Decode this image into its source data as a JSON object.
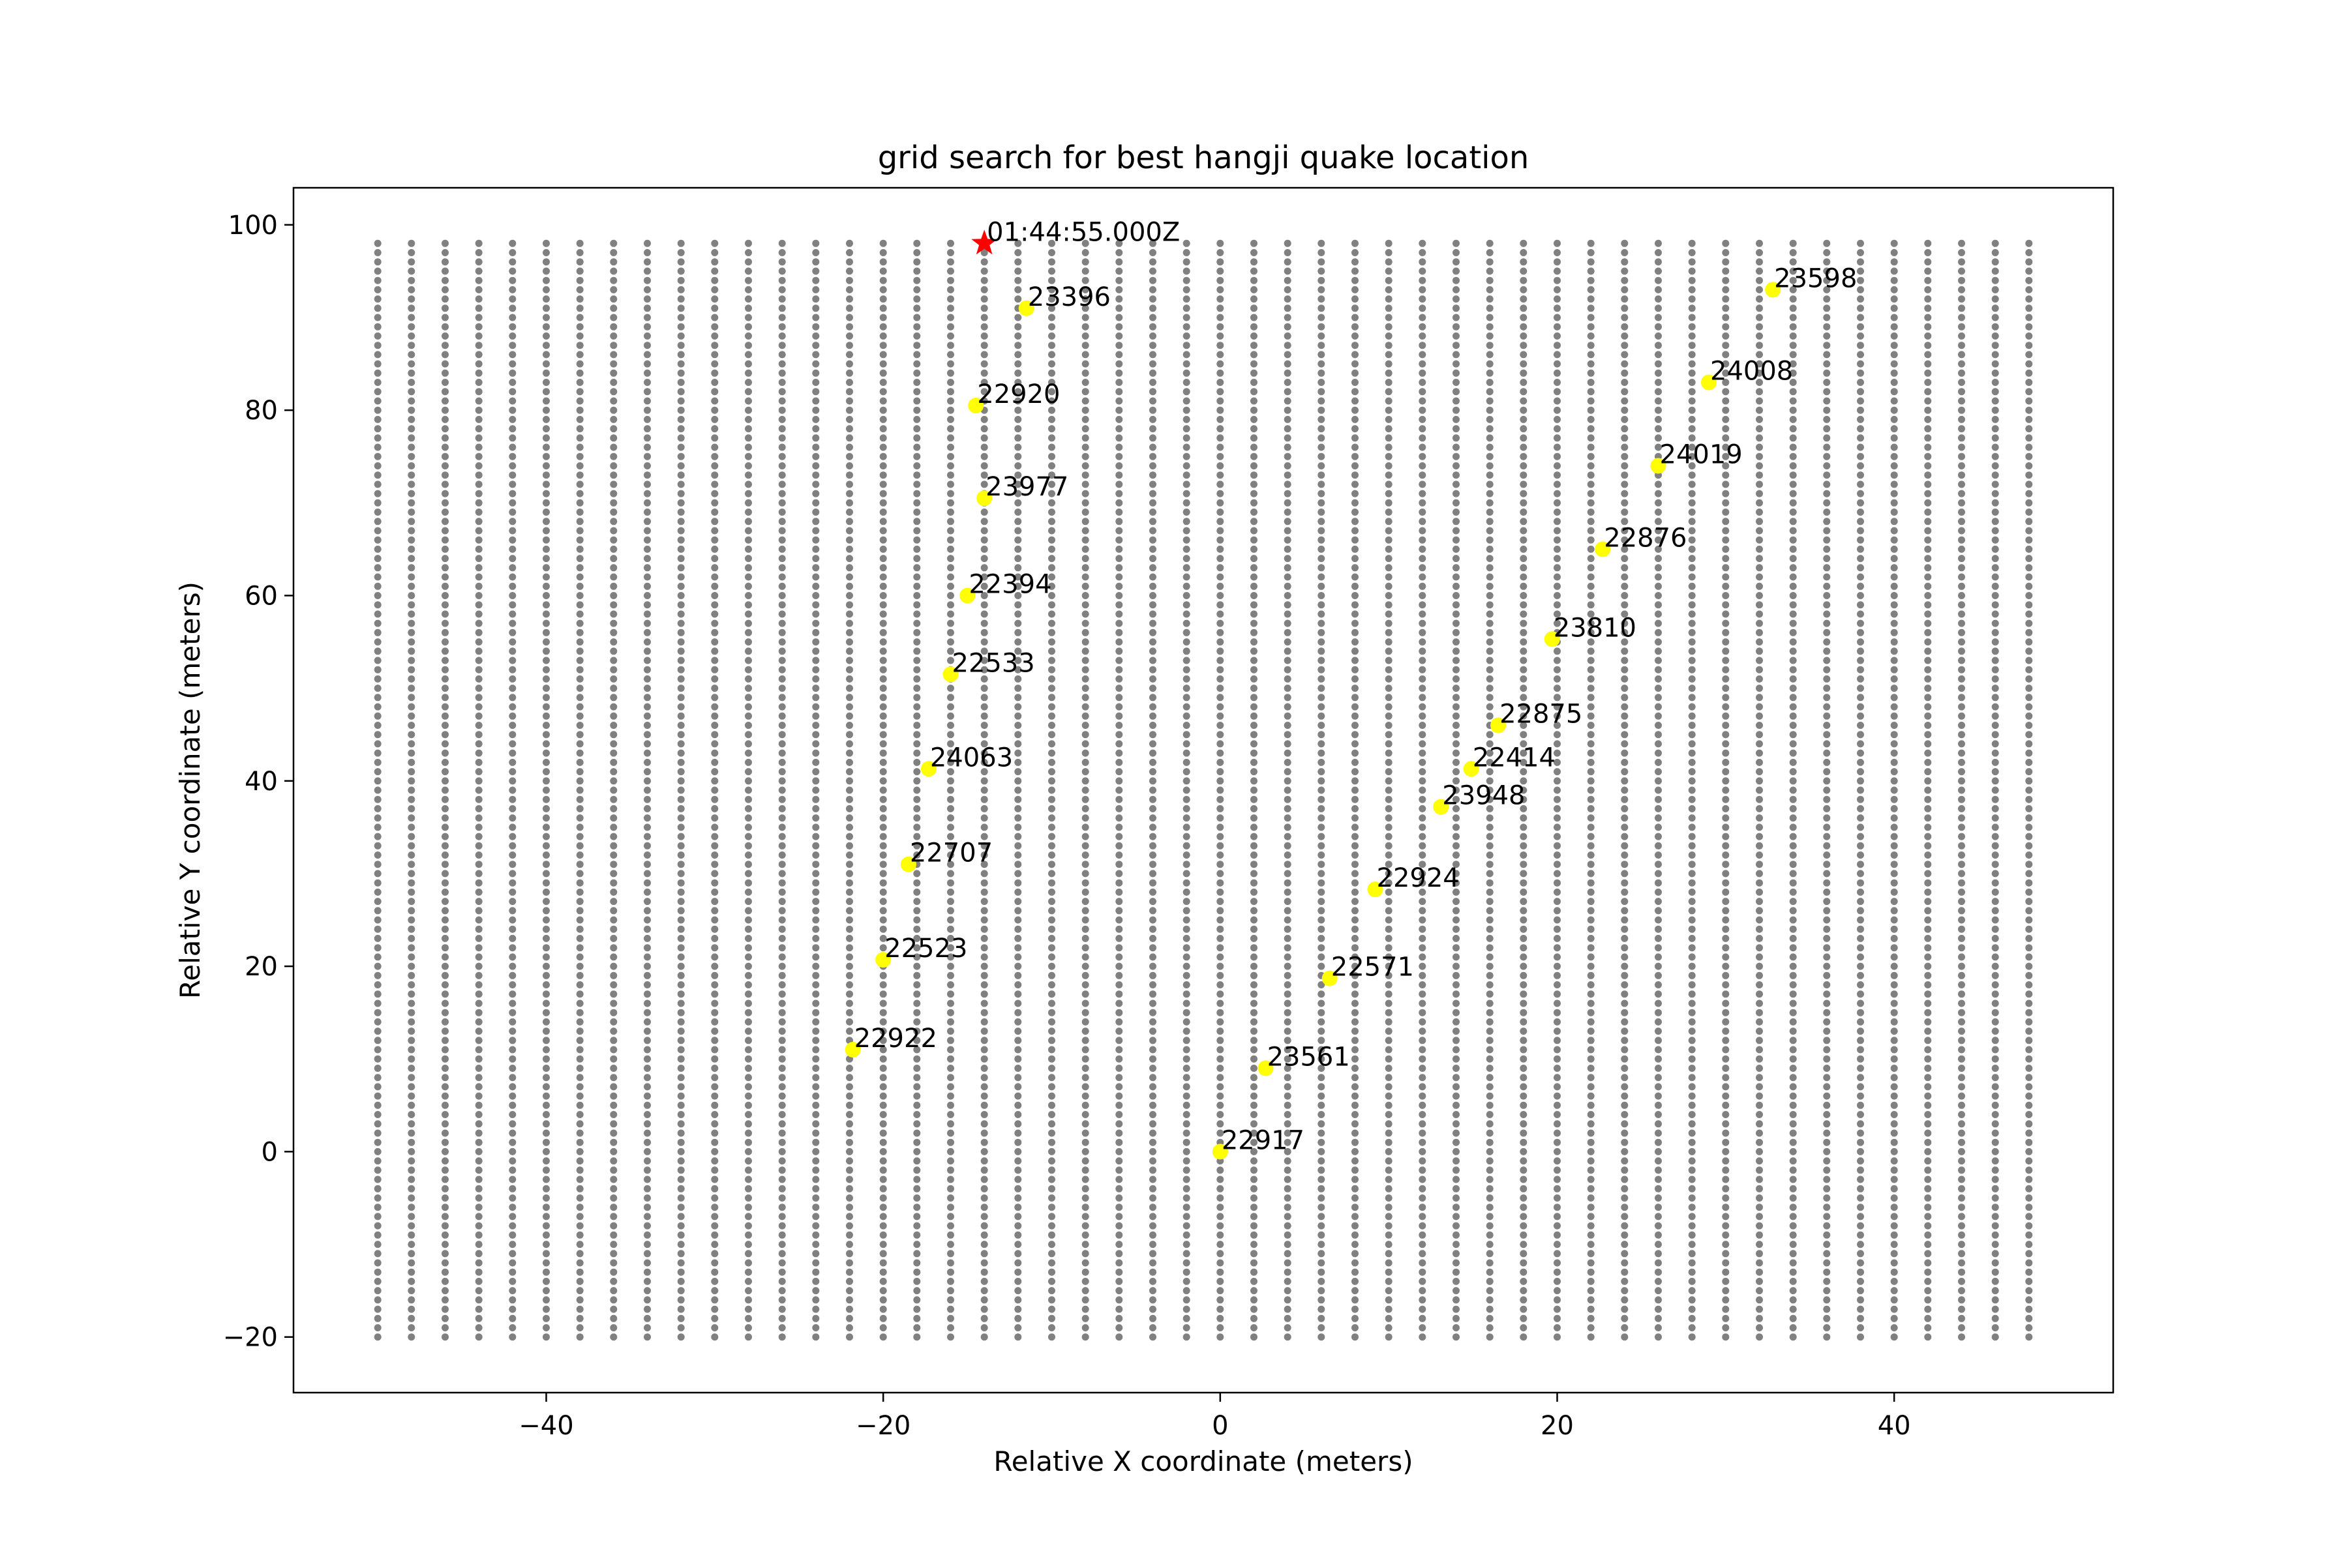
{
  "chart_data": {
    "type": "scatter",
    "title": "grid search for best hangji quake location",
    "xlabel": "Relative X coordinate (meters)",
    "ylabel": "Relative Y coordinate (meters)",
    "xlim": [
      -55,
      53
    ],
    "ylim": [
      -26,
      104
    ],
    "xticks": [
      -40,
      -20,
      0,
      20,
      40
    ],
    "yticks": [
      -20,
      0,
      20,
      40,
      60,
      80,
      100
    ],
    "xtick_labels": [
      "−40",
      "−20",
      "0",
      "20",
      "40"
    ],
    "ytick_labels": [
      "−20",
      "0",
      "20",
      "40",
      "60",
      "80",
      "100"
    ],
    "grid": false,
    "legend": "none",
    "grid_points": {
      "x_start": -50,
      "x_end": 48,
      "x_step": 2,
      "y_start": -20,
      "y_end": 98,
      "y_step": 1,
      "color": "#808080"
    },
    "stations": {
      "color": "#ffff00",
      "points": [
        {
          "x": -11.5,
          "y": 91.0,
          "label": "23396"
        },
        {
          "x": 32.8,
          "y": 93.0,
          "label": "23598"
        },
        {
          "x": -14.5,
          "y": 80.5,
          "label": "22920"
        },
        {
          "x": 29.0,
          "y": 83.0,
          "label": "24008"
        },
        {
          "x": -14.0,
          "y": 70.5,
          "label": "23977"
        },
        {
          "x": 26.0,
          "y": 74.0,
          "label": "24019"
        },
        {
          "x": 22.7,
          "y": 65.0,
          "label": "22876"
        },
        {
          "x": -15.0,
          "y": 60.0,
          "label": "22394"
        },
        {
          "x": 19.7,
          "y": 55.3,
          "label": "23810"
        },
        {
          "x": -16.0,
          "y": 51.5,
          "label": "22533"
        },
        {
          "x": 16.5,
          "y": 46.0,
          "label": "22875"
        },
        {
          "x": -17.3,
          "y": 41.3,
          "label": "24063"
        },
        {
          "x": 14.9,
          "y": 41.3,
          "label": "22414"
        },
        {
          "x": 13.1,
          "y": 37.2,
          "label": "23948"
        },
        {
          "x": -18.5,
          "y": 31.0,
          "label": "22707"
        },
        {
          "x": 9.2,
          "y": 28.3,
          "label": "22924"
        },
        {
          "x": -20.0,
          "y": 20.7,
          "label": "22523"
        },
        {
          "x": 6.5,
          "y": 18.7,
          "label": "22571"
        },
        {
          "x": -21.8,
          "y": 11.0,
          "label": "22922"
        },
        {
          "x": 2.7,
          "y": 9.0,
          "label": "23561"
        },
        {
          "x": 0.0,
          "y": 0.0,
          "label": "22917"
        }
      ]
    },
    "best_location": {
      "x": -14.0,
      "y": 98.0,
      "label": "01:44:55.000Z",
      "color": "#ff0000",
      "marker": "star"
    }
  }
}
